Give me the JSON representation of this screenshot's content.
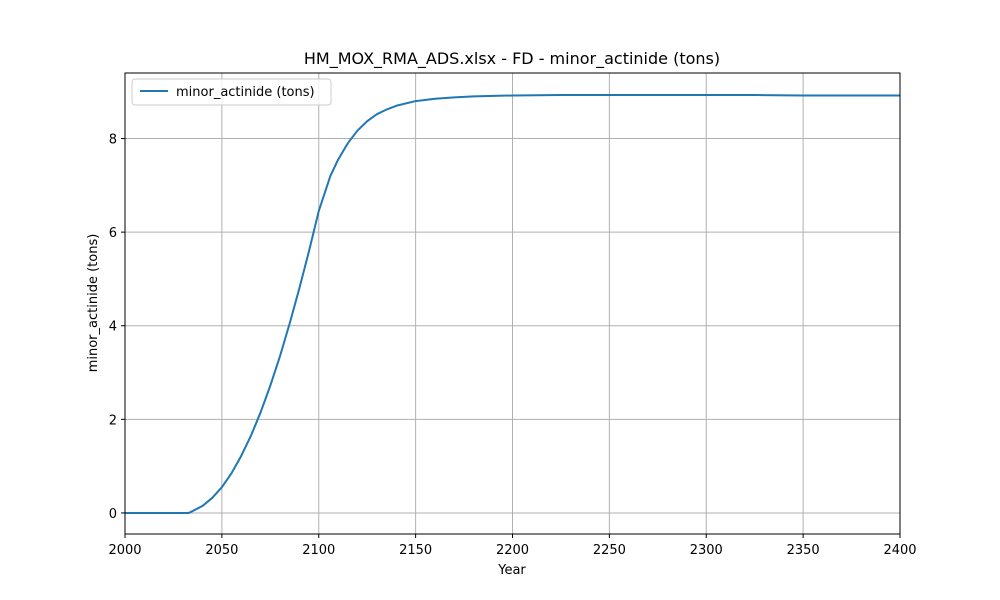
{
  "chart_data": {
    "type": "line",
    "title": "HM_MOX_RMA_ADS.xlsx - FD - minor_actinide (tons)",
    "xlabel": "Year",
    "ylabel": "minor_actinide (tons)",
    "xlim": [
      2000,
      2400
    ],
    "ylim": [
      -0.45,
      9.4
    ],
    "xticks": [
      2000,
      2050,
      2100,
      2150,
      2200,
      2250,
      2300,
      2350,
      2400
    ],
    "yticks": [
      0,
      2,
      4,
      6,
      8
    ],
    "grid": true,
    "legend_position": "top-left",
    "colors": {
      "series": "#1f77b4",
      "grid": "#b0b0b0"
    },
    "series": [
      {
        "name": "minor_actinide (tons)",
        "x": [
          2000,
          2010,
          2020,
          2030,
          2033,
          2040,
          2045,
          2050,
          2055,
          2060,
          2065,
          2070,
          2075,
          2080,
          2085,
          2090,
          2095,
          2100,
          2106,
          2110,
          2115,
          2120,
          2125,
          2130,
          2135,
          2140,
          2150,
          2160,
          2170,
          2180,
          2200,
          2225,
          2250,
          2275,
          2300,
          2325,
          2350,
          2375,
          2400
        ],
        "y": [
          0,
          0,
          0,
          0,
          0,
          0.15,
          0.32,
          0.55,
          0.85,
          1.22,
          1.65,
          2.15,
          2.72,
          3.35,
          4.05,
          4.8,
          5.6,
          6.45,
          7.2,
          7.55,
          7.9,
          8.17,
          8.37,
          8.52,
          8.62,
          8.7,
          8.8,
          8.85,
          8.88,
          8.9,
          8.92,
          8.93,
          8.93,
          8.93,
          8.93,
          8.93,
          8.92,
          8.92,
          8.92
        ]
      }
    ]
  }
}
